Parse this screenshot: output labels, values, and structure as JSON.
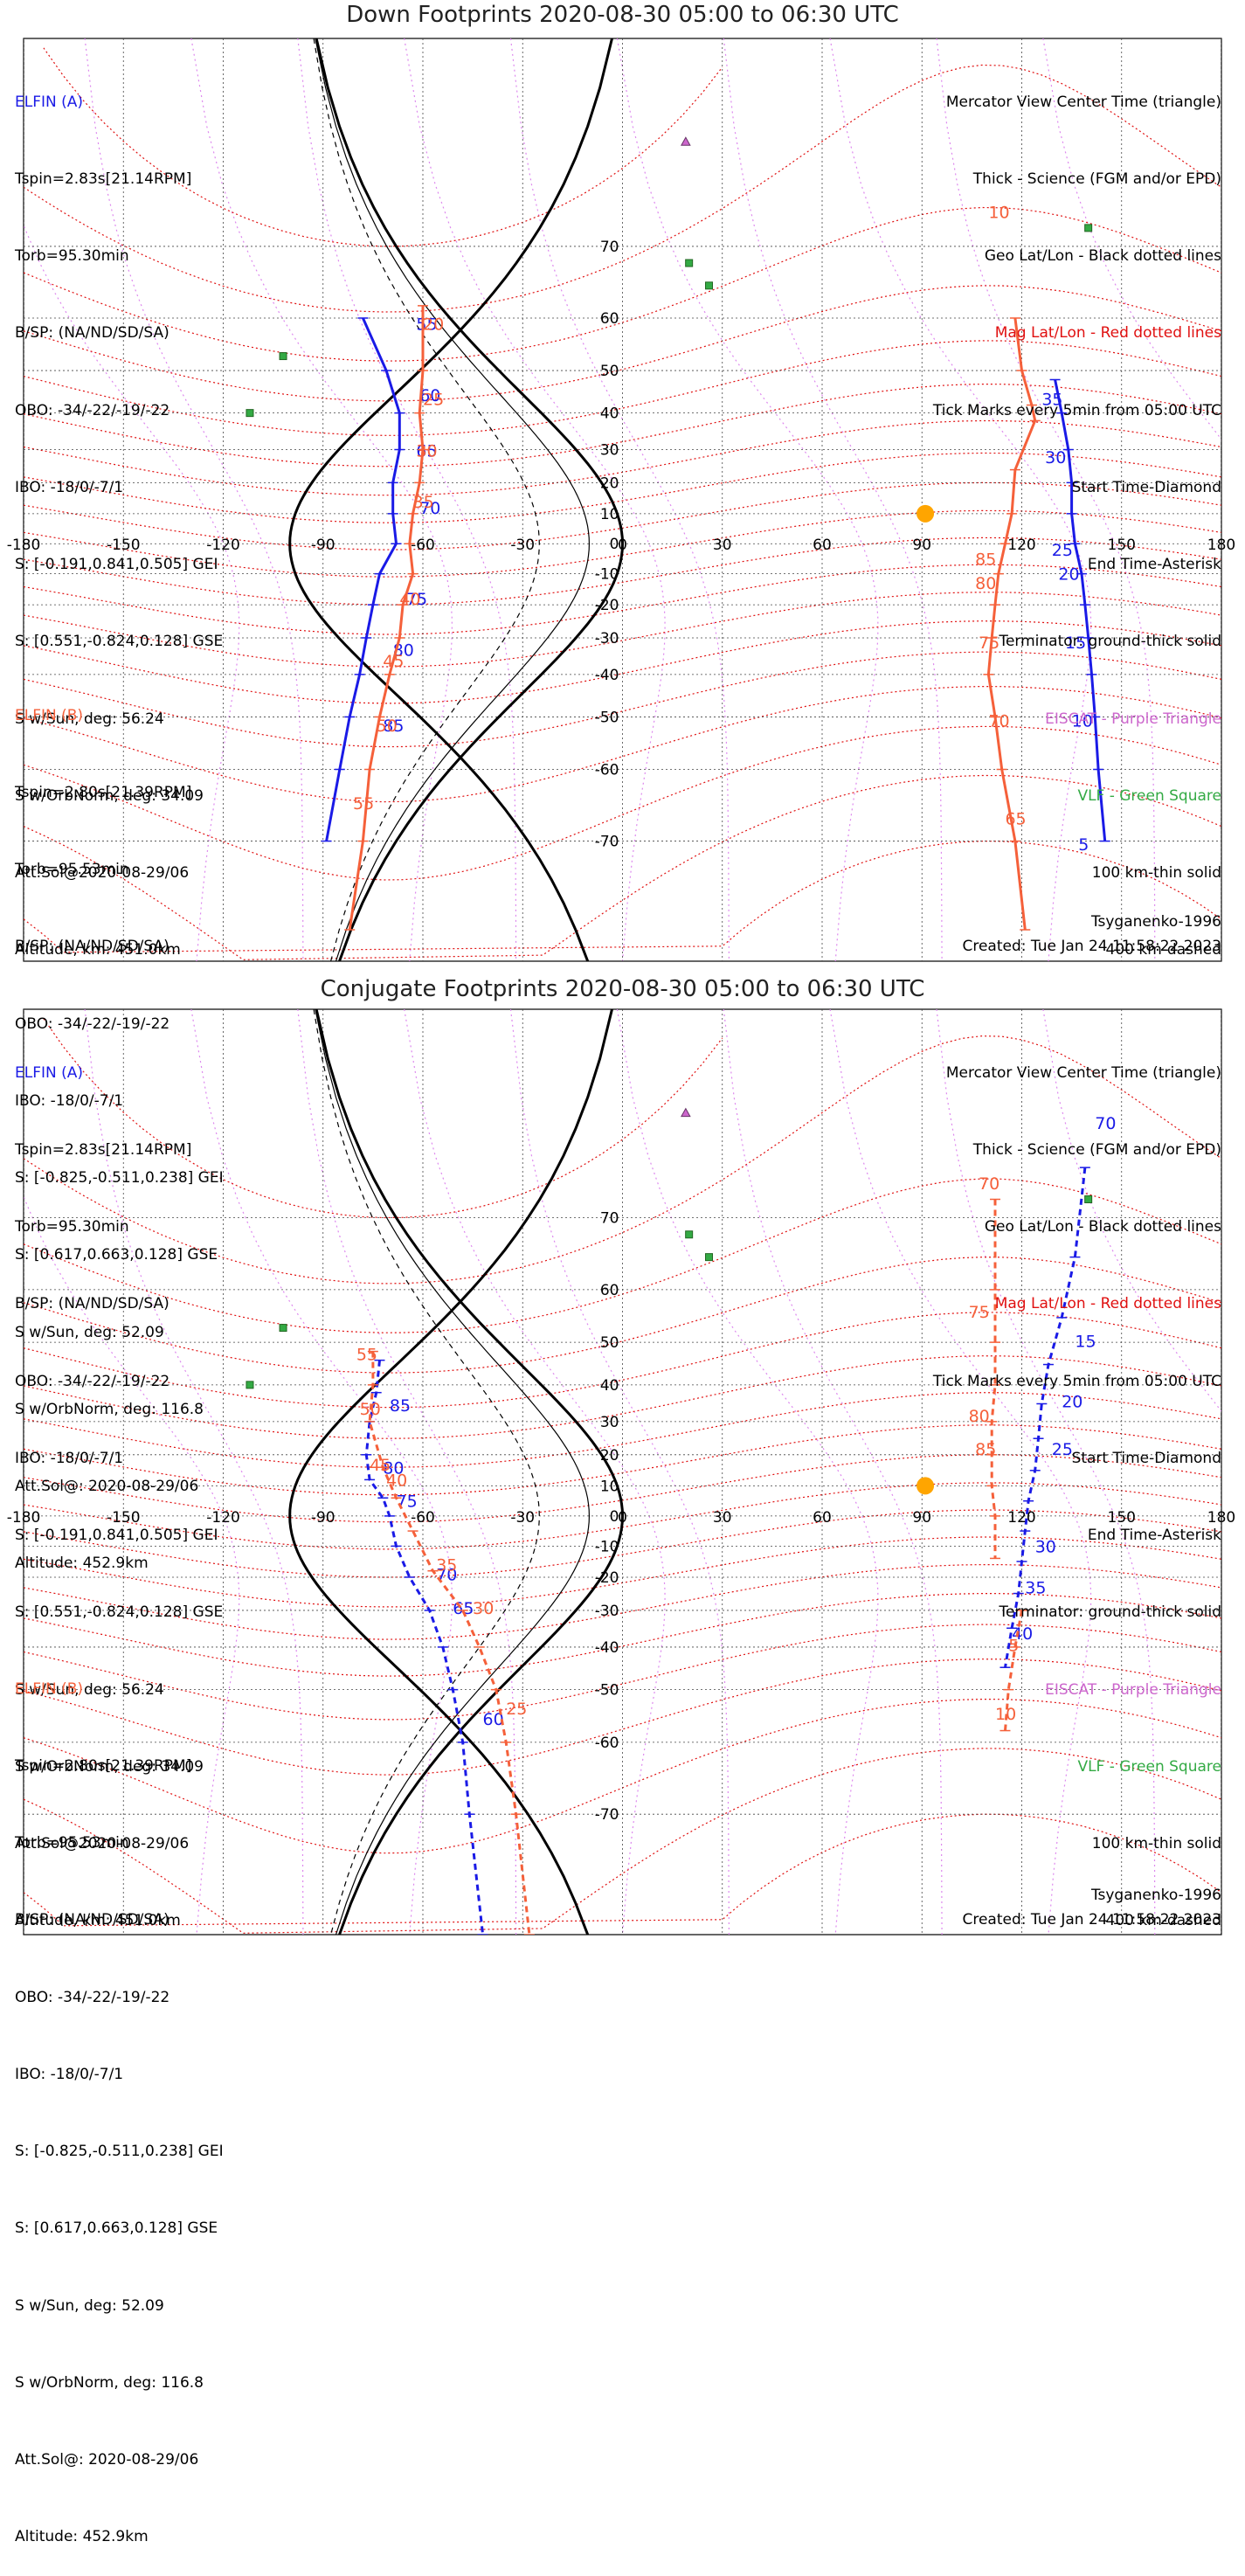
{
  "colors": {
    "elfin_a": "#1a1ae6",
    "elfin_b": "#f5603a",
    "geo_grid": "#111111",
    "mag_grid": "#e01010",
    "eiscat": "#cc66cc",
    "vlf": "#33aa44",
    "sun": "#ffa500",
    "meridians_mag": "#dd88ee"
  },
  "panels": [
    {
      "title": "Down Footprints 2020-08-30 05:00 to 06:30 UTC",
      "elfin_a": {
        "head": "ELFIN (A)",
        "lines": [
          "Tspin=2.83s[21.14RPM]",
          "Torb=95.30min",
          "B/SP: (NA/ND/SD/SA)",
          "OBO: -34/-22/-19/-22",
          "IBO: -18/0/-7/1",
          "S: [-0.191,0.841,0.505] GEI",
          "S: [0.551,-0.824,0.128] GSE",
          "S w/Sun, deg: 56.24",
          "S w/OrbNorm, deg: 34.09",
          "Att.Sol@2020-08-29/06",
          "Altitude, km: 451.0km"
        ]
      },
      "elfin_b": {
        "head": "ELFIN (B)",
        "lines": [
          "Tspin=2.80s[21.39RPM]",
          "Torb=95.53min",
          "B/SP: (NA/ND/SD/SA)",
          "OBO: -34/-22/-19/-22",
          "IBO: -18/0/-7/1",
          "S: [-0.825,-0.511,0.238] GEI",
          "S: [0.617,0.663,0.128] GSE",
          "S w/Sun, deg: 52.09",
          "S w/OrbNorm, deg: 116.8",
          "Att.Sol@: 2020-08-29/06",
          "Altitude: 452.9km"
        ]
      },
      "legend": [
        "Mercator View Center Time (triangle)",
        "Thick - Science (FGM and/or EPD)",
        "Geo Lat/Lon - Black dotted lines",
        "Mag Lat/Lon - Red dotted lines",
        "Tick Marks every 5min from 05:00 UTC",
        "Start Time-Diamond",
        "End Time-Asterisk",
        "Terminator: ground-thick solid",
        "EISCAT - Purple Triangle",
        "VLF - Green Square",
        "100 km-thin solid",
        "400 km-dashed"
      ],
      "model": "Tsyganenko-1996",
      "created": "Created: Tue Jan 24 11:58:22 2023"
    },
    {
      "title": "Conjugate Footprints 2020-08-30 05:00 to 06:30 UTC",
      "elfin_a": {
        "head": "ELFIN (A)",
        "lines": [
          "Tspin=2.83s[21.14RPM]",
          "Torb=95.30min",
          "B/SP: (NA/ND/SD/SA)",
          "OBO: -34/-22/-19/-22",
          "IBO: -18/0/-7/1",
          "S: [-0.191,0.841,0.505] GEI",
          "S: [0.551,-0.824,0.128] GSE",
          "S w/Sun, deg: 56.24",
          "S w/OrbNorm, deg: 34.09",
          "Att.Sol@2020-08-29/06",
          "Altitude, km: 451.0km"
        ]
      },
      "elfin_b": {
        "head": "ELFIN (B)",
        "lines": [
          "Tspin=2.80s[21.39RPM]",
          "Torb=95.53min",
          "B/SP: (NA/ND/SD/SA)",
          "OBO: -34/-22/-19/-22",
          "IBO: -18/0/-7/1",
          "S: [-0.825,-0.511,0.238] GEI",
          "S: [0.617,0.663,0.128] GSE",
          "S w/Sun, deg: 52.09",
          "S w/OrbNorm, deg: 116.8",
          "Att.Sol@: 2020-08-29/06",
          "Altitude: 452.9km"
        ]
      },
      "legend": [
        "Mercator View Center Time (triangle)",
        "Thick - Science (FGM and/or EPD)",
        "Geo Lat/Lon - Black dotted lines",
        "Mag Lat/Lon - Red dotted lines",
        "Tick Marks every 5min from 05:00 UTC",
        "Start Time-Diamond",
        "End Time-Asterisk",
        "Terminator: ground-thick solid",
        "EISCAT - Purple Triangle",
        "VLF - Green Square",
        "100 km-thin solid",
        "400 km-dashed"
      ],
      "model": "Tsyganenko-1996",
      "created": "Created: Tue Jan 24 11:58:22 2023"
    }
  ],
  "chart_data": [
    {
      "type": "scatter",
      "title": "Down Footprints 2020-08-30 05:00 to 06:30 UTC",
      "x_ticks": [
        -180,
        -150,
        -120,
        -90,
        -60,
        -30,
        0,
        30,
        60,
        90,
        120,
        150,
        180
      ],
      "y_ticks": [
        70,
        60,
        50,
        40,
        30,
        20,
        10,
        0,
        -10,
        -20,
        -30,
        -40,
        -50,
        -60,
        -70
      ],
      "xlim": [
        -180,
        180
      ],
      "ylim": [
        -80,
        84
      ],
      "grid": true,
      "series": [
        {
          "name": "ELFIN (A)",
          "segments": [
            [
              [
                -78,
                60
              ],
              [
                -71,
                50
              ],
              [
                -67,
                40
              ],
              [
                -67,
                30
              ],
              [
                -69,
                20
              ],
              [
                -69,
                10
              ],
              [
                -68,
                0
              ],
              [
                -73,
                -10
              ],
              [
                -75,
                -20
              ],
              [
                -77,
                -30
              ],
              [
                -79,
                -40
              ],
              [
                -82,
                -50
              ],
              [
                -85,
                -60
              ],
              [
                -89,
                -70
              ]
            ],
            [
              [
                130,
                48
              ],
              [
                132,
                40
              ],
              [
                134,
                30
              ],
              [
                135,
                20
              ],
              [
                135,
                10
              ],
              [
                136,
                0
              ],
              [
                138,
                -10
              ],
              [
                139,
                -20
              ],
              [
                140,
                -30
              ],
              [
                141,
                -40
              ],
              [
                142,
                -50
              ],
              [
                143,
                -60
              ],
              [
                145,
                -70
              ]
            ]
          ],
          "labels": [
            {
              "text": "55",
              "lon": -62,
              "lat": 58
            },
            {
              "text": "60",
              "lon": -61,
              "lat": 43
            },
            {
              "text": "65",
              "lon": -62,
              "lat": 28
            },
            {
              "text": "70",
              "lon": -61,
              "lat": 10
            },
            {
              "text": "75",
              "lon": -65,
              "lat": -20
            },
            {
              "text": "80",
              "lon": -69,
              "lat": -35
            },
            {
              "text": "85",
              "lon": -72,
              "lat": -53
            },
            {
              "text": "35",
              "lon": 126,
              "lat": 42
            },
            {
              "text": "30",
              "lon": 127,
              "lat": 26
            },
            {
              "text": "25",
              "lon": 129,
              "lat": -4
            },
            {
              "text": "20",
              "lon": 131,
              "lat": -12
            },
            {
              "text": "15",
              "lon": 133,
              "lat": -33
            },
            {
              "text": "10",
              "lon": 135,
              "lat": -52
            },
            {
              "text": "5",
              "lon": 137,
              "lat": -71
            }
          ]
        },
        {
          "name": "ELFIN (B)",
          "segments": [
            [
              [
                -60,
                62
              ],
              [
                -60,
                50
              ],
              [
                -61,
                40
              ],
              [
                -60,
                30
              ],
              [
                -61,
                20
              ],
              [
                -63,
                10
              ],
              [
                -64,
                0
              ],
              [
                -63,
                -10
              ],
              [
                -66,
                -20
              ],
              [
                -67,
                -30
              ],
              [
                -70,
                -40
              ],
              [
                -73,
                -50
              ],
              [
                -76,
                -60
              ],
              [
                -78,
                -70
              ],
              [
                -82,
                -78
              ]
            ],
            [
              [
                118,
                60
              ],
              [
                120,
                50
              ],
              [
                123,
                42
              ],
              [
                124,
                38
              ],
              [
                118,
                24
              ],
              [
                117,
                10
              ],
              [
                115,
                0
              ],
              [
                113,
                -10
              ],
              [
                112,
                -20
              ],
              [
                111,
                -30
              ],
              [
                110,
                -40
              ],
              [
                112,
                -50
              ],
              [
                114,
                -60
              ],
              [
                118,
                -70
              ],
              [
                121,
                -78
              ]
            ]
          ],
          "labels": [
            {
              "text": "20",
              "lon": -60,
              "lat": 58
            },
            {
              "text": "25",
              "lon": -60,
              "lat": 42
            },
            {
              "text": "30",
              "lon": -62,
              "lat": 28
            },
            {
              "text": "35",
              "lon": -63,
              "lat": 12
            },
            {
              "text": "40",
              "lon": -67,
              "lat": -20
            },
            {
              "text": "45",
              "lon": -72,
              "lat": -38
            },
            {
              "text": "50",
              "lon": -74,
              "lat": -53
            },
            {
              "text": "55",
              "lon": -81,
              "lat": -66
            },
            {
              "text": "10",
              "lon": 110,
              "lat": 73
            },
            {
              "text": "85",
              "lon": 106,
              "lat": -7
            },
            {
              "text": "80",
              "lon": 106,
              "lat": -15
            },
            {
              "text": "75",
              "lon": 107,
              "lat": -33
            },
            {
              "text": "70",
              "lon": 110,
              "lat": -52
            },
            {
              "text": "65",
              "lon": 115,
              "lat": -68
            }
          ]
        }
      ]
    },
    {
      "type": "scatter",
      "title": "Conjugate Footprints 2020-08-30 05:00 to 06:30 UTC",
      "x_ticks": [
        -180,
        -150,
        -120,
        -90,
        -60,
        -30,
        0,
        30,
        60,
        90,
        120,
        150,
        180
      ],
      "y_ticks": [
        70,
        60,
        50,
        40,
        30,
        20,
        10,
        0,
        -10,
        -20,
        -30,
        -40,
        -50,
        -60,
        -70
      ],
      "xlim": [
        -180,
        180
      ],
      "ylim": [
        -80,
        84
      ],
      "grid": true,
      "series": [
        {
          "name": "ELFIN (A)",
          "segments": [
            [
              [
                -73,
                46
              ],
              [
                -74,
                38
              ],
              [
                -76,
                30
              ],
              [
                -77,
                20
              ],
              [
                -76,
                12
              ],
              [
                -72,
                6
              ],
              [
                -70,
                0
              ],
              [
                -68,
                -10
              ],
              [
                -64,
                -20
              ],
              [
                -58,
                -30
              ],
              [
                -54,
                -40
              ],
              [
                -51,
                -50
              ],
              [
                -48,
                -60
              ],
              [
                -46,
                -70
              ],
              [
                -42,
                -80
              ]
            ],
            [
              [
                139,
                75
              ],
              [
                136,
                65
              ],
              [
                132,
                55
              ],
              [
                128,
                45
              ],
              [
                126,
                35
              ],
              [
                125,
                25
              ],
              [
                124,
                15
              ],
              [
                122,
                5
              ],
              [
                121,
                -5
              ],
              [
                120,
                -15
              ],
              [
                119,
                -25
              ],
              [
                117,
                -35
              ],
              [
                115,
                -45
              ]
            ]
          ],
          "labels": [
            {
              "text": "85",
              "lon": -70,
              "lat": 33
            },
            {
              "text": "80",
              "lon": -72,
              "lat": 14
            },
            {
              "text": "75",
              "lon": -68,
              "lat": 3
            },
            {
              "text": "70",
              "lon": -56,
              "lat": -21
            },
            {
              "text": "65",
              "lon": -51,
              "lat": -31
            },
            {
              "text": "60",
              "lon": -42,
              "lat": -57
            },
            {
              "text": "70",
              "lon": 142,
              "lat": 78
            },
            {
              "text": "15",
              "lon": 136,
              "lat": 49
            },
            {
              "text": "20",
              "lon": 132,
              "lat": 34
            },
            {
              "text": "25",
              "lon": 129,
              "lat": 20
            },
            {
              "text": "30",
              "lon": 124,
              "lat": -12
            },
            {
              "text": "35",
              "lon": 121,
              "lat": -25
            },
            {
              "text": "40",
              "lon": 117,
              "lat": -38
            }
          ]
        },
        {
          "name": "ELFIN (B)",
          "segments": [
            [
              [
                -75,
                48
              ],
              [
                -75,
                40
              ],
              [
                -76,
                30
              ],
              [
                -72,
                16
              ],
              [
                -68,
                6
              ],
              [
                -63,
                -5
              ],
              [
                -57,
                -18
              ],
              [
                -48,
                -30
              ],
              [
                -43,
                -40
              ],
              [
                -38,
                -50
              ],
              [
                -35,
                -60
              ],
              [
                -32,
                -70
              ],
              [
                -28,
                -80
              ]
            ],
            [
              [
                112,
                72
              ],
              [
                112,
                60
              ],
              [
                112,
                50
              ],
              [
                112,
                40
              ],
              [
                111,
                30
              ],
              [
                111,
                20
              ],
              [
                111,
                10
              ],
              [
                112,
                0
              ],
              [
                112,
                -14
              ]
            ],
            [
              [
                120,
                -30
              ],
              [
                118,
                -40
              ],
              [
                116,
                -50
              ],
              [
                115,
                -58
              ]
            ]
          ],
          "labels": [
            {
              "text": "55",
              "lon": -80,
              "lat": 46
            },
            {
              "text": "50",
              "lon": -79,
              "lat": 32
            },
            {
              "text": "45",
              "lon": -76,
              "lat": 15
            },
            {
              "text": "40",
              "lon": -71,
              "lat": 10
            },
            {
              "text": "35",
              "lon": -56,
              "lat": -18
            },
            {
              "text": "30",
              "lon": -45,
              "lat": -31
            },
            {
              "text": "25",
              "lon": -35,
              "lat": -55
            },
            {
              "text": "70",
              "lon": 107,
              "lat": 73
            },
            {
              "text": "75",
              "lon": 104,
              "lat": 55
            },
            {
              "text": "80",
              "lon": 104,
              "lat": 30
            },
            {
              "text": "85",
              "lon": 106,
              "lat": 20
            },
            {
              "text": "5",
              "lon": 116,
              "lat": -41
            },
            {
              "text": "10",
              "lon": 112,
              "lat": -56
            }
          ]
        }
      ]
    }
  ]
}
